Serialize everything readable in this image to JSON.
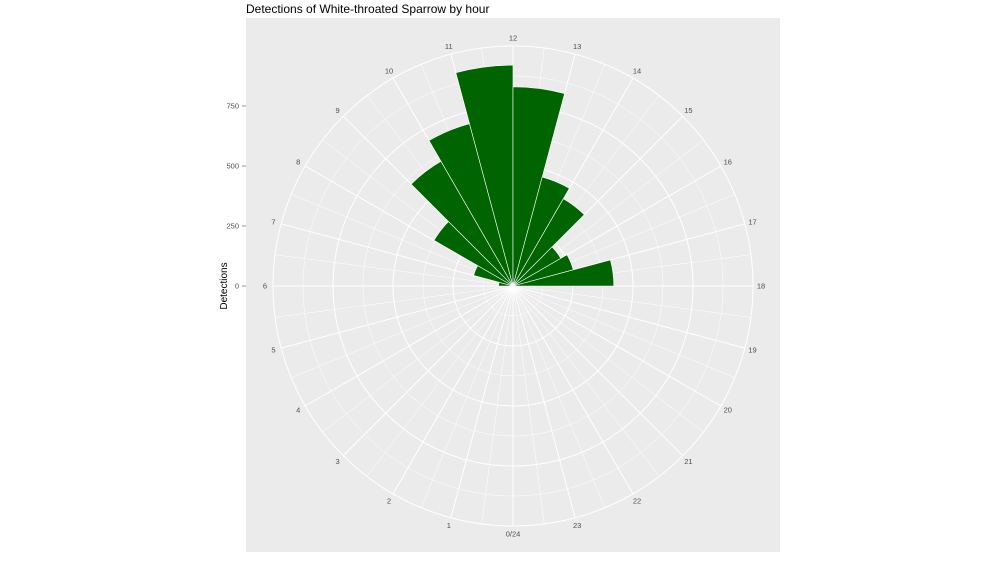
{
  "chart_data": {
    "type": "bar",
    "coord": "polar",
    "title": "Detections of White-throated Sparrow by hour",
    "xlabel": "",
    "ylabel": "Detections",
    "categories": [
      "0/24",
      "1",
      "2",
      "3",
      "4",
      "5",
      "6",
      "7",
      "8",
      "9",
      "10",
      "11",
      "12",
      "13",
      "14",
      "15",
      "16",
      "17",
      "18",
      "19",
      "20",
      "21",
      "22",
      "23"
    ],
    "angle_labels": [
      "0/24",
      "1",
      "2",
      "3",
      "4",
      "5",
      "6",
      "7",
      "8",
      "9",
      "10",
      "11",
      "12",
      "13",
      "14",
      "15",
      "16",
      "17",
      "18",
      "19",
      "20",
      "21",
      "22",
      "23"
    ],
    "series": [
      {
        "values": [
          0,
          0,
          0,
          0,
          0,
          0,
          60,
          170,
          380,
          600,
          700,
          920,
          830,
          470,
          420,
          230,
          260,
          420,
          0,
          0,
          0,
          0,
          0,
          0
        ]
      }
    ],
    "radial_ticks": [
      0,
      250,
      500,
      750
    ],
    "ylim": [
      0,
      1000
    ],
    "bar_color": "#006400",
    "panel_color": "#ebebeb",
    "grid": true,
    "legend": "none"
  }
}
